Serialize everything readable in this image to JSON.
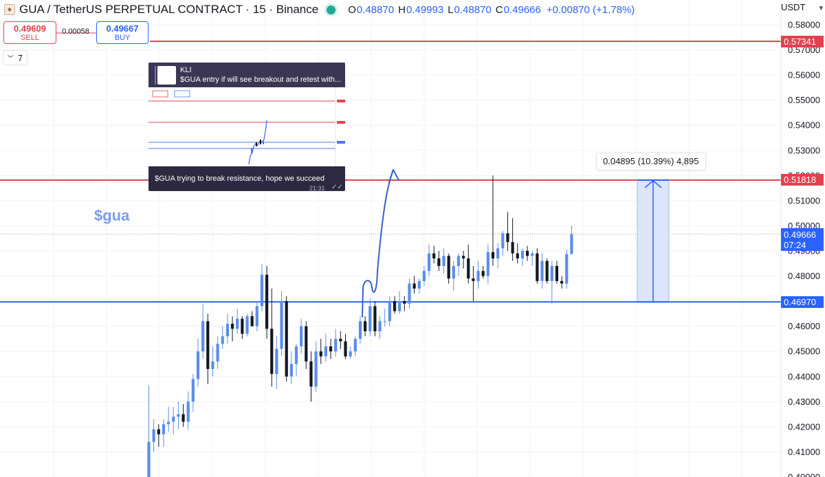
{
  "header": {
    "symbol_title": "GUA / TetherUS PERPETUAL CONTRACT · 15 · Binance",
    "ohlc": [
      {
        "k": "O",
        "v": "0.48870"
      },
      {
        "k": "H",
        "v": "0.49993"
      },
      {
        "k": "L",
        "v": "0.48870"
      },
      {
        "k": "C",
        "v": "0.49666"
      }
    ],
    "change": "+0.00870 (+1.78%)"
  },
  "currency_selector": "USDT",
  "trade": {
    "sell_price": "0.49609",
    "sell_label": "SELL",
    "spread": "0.00058",
    "buy_price": "0.49667",
    "buy_label": "BUY"
  },
  "indicators_toggle": {
    "count": "7"
  },
  "annotation_text": "$gua",
  "measure_label": "0.04895 (10.39%) 4,895",
  "price_scale": {
    "ticks": [
      "0.58000",
      "0.57000",
      "0.56000",
      "0.55000",
      "0.54000",
      "0.53000",
      "0.52000",
      "0.51000",
      "0.50000",
      "0.49000",
      "0.48000",
      "0.47000",
      "0.46000",
      "0.45000",
      "0.44000",
      "0.43000",
      "0.42000",
      "0.41000",
      "0.40000"
    ],
    "level_red_high": "0.57341",
    "level_red_mid": "0.51818",
    "level_blue": "0.46970",
    "current_price": "0.49666",
    "countdown": "07:24"
  },
  "inset": {
    "sender": "KLI",
    "message": "$GUA entry if will see breakout and retest with...",
    "caption": "$GUA trying to break resistance, hope we succeed",
    "time": "21:31"
  },
  "colors": {
    "up": "#5b8ee8",
    "down": "#131722",
    "resistance": "#e0424f",
    "support": "#2962ff",
    "measure_fill": "#dce6fb",
    "drawing": "#3560cf"
  },
  "chart_data": {
    "type": "candlestick",
    "timeframe": "15",
    "y_range": [
      0.4,
      0.583
    ],
    "candles": [
      {
        "o": 0.4,
        "h": 0.4365,
        "l": 0.4,
        "c": 0.414
      },
      {
        "o": 0.414,
        "h": 0.423,
        "l": 0.41,
        "c": 0.419
      },
      {
        "o": 0.419,
        "h": 0.421,
        "l": 0.412,
        "c": 0.417
      },
      {
        "o": 0.417,
        "h": 0.423,
        "l": 0.412,
        "c": 0.421
      },
      {
        "o": 0.421,
        "h": 0.428,
        "l": 0.418,
        "c": 0.422
      },
      {
        "o": 0.422,
        "h": 0.428,
        "l": 0.417,
        "c": 0.424
      },
      {
        "o": 0.424,
        "h": 0.43,
        "l": 0.419,
        "c": 0.425
      },
      {
        "o": 0.425,
        "h": 0.429,
        "l": 0.42,
        "c": 0.422
      },
      {
        "o": 0.422,
        "h": 0.434,
        "l": 0.419,
        "c": 0.43
      },
      {
        "o": 0.43,
        "h": 0.441,
        "l": 0.426,
        "c": 0.439
      },
      {
        "o": 0.439,
        "h": 0.455,
        "l": 0.436,
        "c": 0.45
      },
      {
        "o": 0.45,
        "h": 0.469,
        "l": 0.447,
        "c": 0.462
      },
      {
        "o": 0.462,
        "h": 0.465,
        "l": 0.437,
        "c": 0.443
      },
      {
        "o": 0.443,
        "h": 0.452,
        "l": 0.44,
        "c": 0.446
      },
      {
        "o": 0.446,
        "h": 0.456,
        "l": 0.443,
        "c": 0.453
      },
      {
        "o": 0.453,
        "h": 0.46,
        "l": 0.451,
        "c": 0.456
      },
      {
        "o": 0.456,
        "h": 0.465,
        "l": 0.453,
        "c": 0.461
      },
      {
        "o": 0.461,
        "h": 0.464,
        "l": 0.454,
        "c": 0.459
      },
      {
        "o": 0.459,
        "h": 0.467,
        "l": 0.457,
        "c": 0.463
      },
      {
        "o": 0.463,
        "h": 0.464,
        "l": 0.455,
        "c": 0.457
      },
      {
        "o": 0.457,
        "h": 0.465,
        "l": 0.456,
        "c": 0.464
      },
      {
        "o": 0.464,
        "h": 0.466,
        "l": 0.46,
        "c": 0.46
      },
      {
        "o": 0.46,
        "h": 0.47,
        "l": 0.458,
        "c": 0.468
      },
      {
        "o": 0.468,
        "h": 0.4848,
        "l": 0.466,
        "c": 0.4805
      },
      {
        "o": 0.4805,
        "h": 0.484,
        "l": 0.455,
        "c": 0.459
      },
      {
        "o": 0.459,
        "h": 0.475,
        "l": 0.436,
        "c": 0.441
      },
      {
        "o": 0.441,
        "h": 0.456,
        "l": 0.435,
        "c": 0.451
      },
      {
        "o": 0.451,
        "h": 0.474,
        "l": 0.448,
        "c": 0.47
      },
      {
        "o": 0.47,
        "h": 0.472,
        "l": 0.438,
        "c": 0.44
      },
      {
        "o": 0.44,
        "h": 0.45,
        "l": 0.437,
        "c": 0.445
      },
      {
        "o": 0.445,
        "h": 0.453,
        "l": 0.44,
        "c": 0.452
      },
      {
        "o": 0.452,
        "h": 0.463,
        "l": 0.449,
        "c": 0.46
      },
      {
        "o": 0.46,
        "h": 0.462,
        "l": 0.443,
        "c": 0.446
      },
      {
        "o": 0.446,
        "h": 0.45,
        "l": 0.43,
        "c": 0.436
      },
      {
        "o": 0.436,
        "h": 0.454,
        "l": 0.434,
        "c": 0.45
      },
      {
        "o": 0.45,
        "h": 0.455,
        "l": 0.445,
        "c": 0.448
      },
      {
        "o": 0.448,
        "h": 0.457,
        "l": 0.446,
        "c": 0.452
      },
      {
        "o": 0.452,
        "h": 0.455,
        "l": 0.447,
        "c": 0.45
      },
      {
        "o": 0.45,
        "h": 0.459,
        "l": 0.448,
        "c": 0.455
      },
      {
        "o": 0.455,
        "h": 0.458,
        "l": 0.451,
        "c": 0.454
      },
      {
        "o": 0.454,
        "h": 0.457,
        "l": 0.447,
        "c": 0.448
      },
      {
        "o": 0.448,
        "h": 0.452,
        "l": 0.447,
        "c": 0.45
      },
      {
        "o": 0.45,
        "h": 0.456,
        "l": 0.448,
        "c": 0.455
      },
      {
        "o": 0.455,
        "h": 0.464,
        "l": 0.453,
        "c": 0.462
      },
      {
        "o": 0.462,
        "h": 0.464,
        "l": 0.456,
        "c": 0.458
      },
      {
        "o": 0.458,
        "h": 0.471,
        "l": 0.456,
        "c": 0.468
      },
      {
        "o": 0.468,
        "h": 0.47,
        "l": 0.456,
        "c": 0.458
      },
      {
        "o": 0.458,
        "h": 0.464,
        "l": 0.455,
        "c": 0.462
      },
      {
        "o": 0.462,
        "h": 0.467,
        "l": 0.46,
        "c": 0.462
      },
      {
        "o": 0.462,
        "h": 0.472,
        "l": 0.46,
        "c": 0.47
      },
      {
        "o": 0.47,
        "h": 0.472,
        "l": 0.465,
        "c": 0.466
      },
      {
        "o": 0.466,
        "h": 0.474,
        "l": 0.465,
        "c": 0.47
      },
      {
        "o": 0.47,
        "h": 0.472,
        "l": 0.466,
        "c": 0.469
      },
      {
        "o": 0.469,
        "h": 0.479,
        "l": 0.467,
        "c": 0.477
      },
      {
        "o": 0.477,
        "h": 0.48,
        "l": 0.473,
        "c": 0.475
      },
      {
        "o": 0.475,
        "h": 0.479,
        "l": 0.473,
        "c": 0.478
      },
      {
        "o": 0.478,
        "h": 0.484,
        "l": 0.476,
        "c": 0.482
      },
      {
        "o": 0.482,
        "h": 0.4925,
        "l": 0.48,
        "c": 0.489
      },
      {
        "o": 0.489,
        "h": 0.492,
        "l": 0.485,
        "c": 0.487
      },
      {
        "o": 0.487,
        "h": 0.49,
        "l": 0.482,
        "c": 0.484
      },
      {
        "o": 0.484,
        "h": 0.491,
        "l": 0.481,
        "c": 0.488
      },
      {
        "o": 0.488,
        "h": 0.489,
        "l": 0.477,
        "c": 0.479
      },
      {
        "o": 0.479,
        "h": 0.486,
        "l": 0.474,
        "c": 0.484
      },
      {
        "o": 0.484,
        "h": 0.489,
        "l": 0.48,
        "c": 0.488
      },
      {
        "o": 0.488,
        "h": 0.49,
        "l": 0.483,
        "c": 0.487
      },
      {
        "o": 0.487,
        "h": 0.4925,
        "l": 0.477,
        "c": 0.479
      },
      {
        "o": 0.479,
        "h": 0.484,
        "l": 0.47,
        "c": 0.478
      },
      {
        "o": 0.478,
        "h": 0.486,
        "l": 0.475,
        "c": 0.482
      },
      {
        "o": 0.482,
        "h": 0.484,
        "l": 0.479,
        "c": 0.48
      },
      {
        "o": 0.48,
        "h": 0.4925,
        "l": 0.477,
        "c": 0.4895
      },
      {
        "o": 0.4895,
        "h": 0.52,
        "l": 0.484,
        "c": 0.487
      },
      {
        "o": 0.487,
        "h": 0.493,
        "l": 0.483,
        "c": 0.491
      },
      {
        "o": 0.491,
        "h": 0.498,
        "l": 0.488,
        "c": 0.497
      },
      {
        "o": 0.497,
        "h": 0.5055,
        "l": 0.49,
        "c": 0.4935
      },
      {
        "o": 0.4935,
        "h": 0.503,
        "l": 0.486,
        "c": 0.489
      },
      {
        "o": 0.489,
        "h": 0.493,
        "l": 0.485,
        "c": 0.487
      },
      {
        "o": 0.487,
        "h": 0.491,
        "l": 0.484,
        "c": 0.49
      },
      {
        "o": 0.49,
        "h": 0.492,
        "l": 0.486,
        "c": 0.488
      },
      {
        "o": 0.488,
        "h": 0.49,
        "l": 0.484,
        "c": 0.489
      },
      {
        "o": 0.489,
        "h": 0.491,
        "l": 0.477,
        "c": 0.478
      },
      {
        "o": 0.478,
        "h": 0.489,
        "l": 0.475,
        "c": 0.486
      },
      {
        "o": 0.486,
        "h": 0.487,
        "l": 0.477,
        "c": 0.478
      },
      {
        "o": 0.478,
        "h": 0.486,
        "l": 0.469,
        "c": 0.484
      },
      {
        "o": 0.484,
        "h": 0.486,
        "l": 0.477,
        "c": 0.478
      },
      {
        "o": 0.478,
        "h": 0.48,
        "l": 0.475,
        "c": 0.477
      },
      {
        "o": 0.477,
        "h": 0.4905,
        "l": 0.475,
        "c": 0.4887
      },
      {
        "o": 0.4887,
        "h": 0.49993,
        "l": 0.4887,
        "c": 0.49666
      }
    ]
  }
}
